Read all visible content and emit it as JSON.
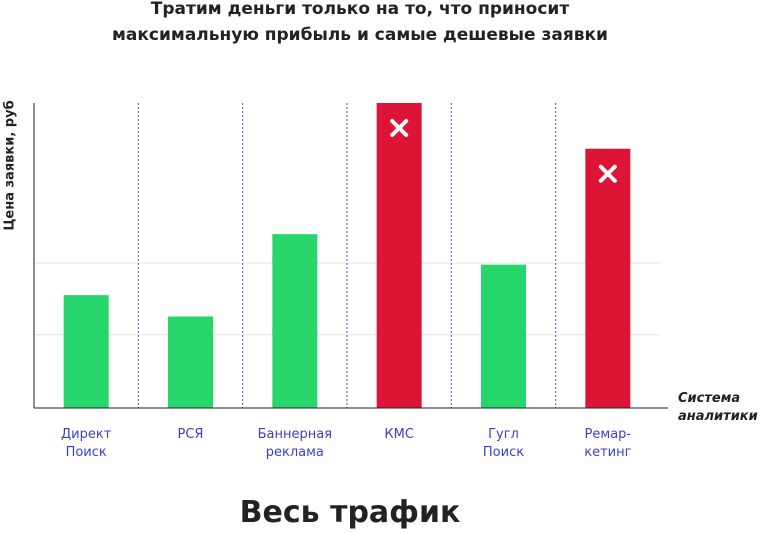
{
  "chart_data": {
    "type": "bar",
    "title": "Тратим деньги только на то, что приносит\nмаксимальную прибыль и самые дешевые заявки",
    "y_label": "Цена заявки, руб",
    "x_label": "Система\nаналитики",
    "footer": "Весь трафик",
    "categories": [
      "Директ\nПоиск",
      "РСЯ",
      "Баннерная\nреклама",
      "КМС",
      "Гугл\nПоиск",
      "Ремар-\nкетинг"
    ],
    "values": [
      37,
      30,
      57,
      100,
      47,
      85
    ],
    "colors": [
      "#27d66a",
      "#27d66a",
      "#27d66a",
      "#dc1537",
      "#27d66a",
      "#dc1537"
    ],
    "crossed": [
      false,
      false,
      false,
      true,
      false,
      true
    ],
    "ylim": [
      0,
      100
    ],
    "grid_lines": [
      24,
      47.5
    ]
  }
}
